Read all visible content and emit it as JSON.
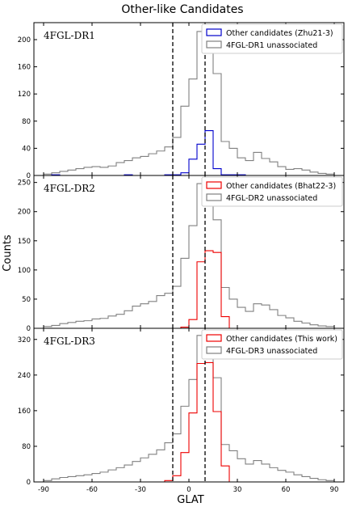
{
  "figure_title": "Other-like Candidates",
  "chart_data": {
    "type": "step-histogram",
    "title": "Other-like Candidates",
    "xlabel": "GLAT",
    "ylabel": "Counts",
    "x_ticks": [
      -90,
      -60,
      -30,
      0,
      30,
      60,
      90
    ],
    "xlim": [
      -96,
      96
    ],
    "bin_edges": [
      -90,
      -85,
      -80,
      -75,
      -70,
      -65,
      -60,
      -55,
      -50,
      -45,
      -40,
      -35,
      -30,
      -25,
      -20,
      -15,
      -10,
      -5,
      0,
      5,
      10,
      15,
      20,
      25,
      30,
      35,
      40,
      45,
      50,
      55,
      60,
      65,
      70,
      75,
      80,
      85,
      90
    ],
    "vertical_lines": [
      -10,
      10
    ],
    "grid": false,
    "legend_position": "top-right",
    "colors": {
      "unassociated": "#808080",
      "dr1_candidates": "#0000cc",
      "dr2_candidates": "#ee0000",
      "dr3_candidates": "#ee0000",
      "vlines": "#000000"
    },
    "panels": [
      {
        "label": "4FGL-DR1",
        "ylim": [
          0,
          225
        ],
        "y_ticks": [
          0,
          40,
          80,
          120,
          160,
          200
        ],
        "series": [
          {
            "name": "Other candidates (Zhu21-3)",
            "color": "#0000cc",
            "values": [
              0,
              1,
              0,
              0,
              0,
              0,
              0,
              0,
              0,
              0,
              1,
              0,
              0,
              0,
              0,
              1,
              1,
              4,
              24,
              46,
              66,
              10,
              1,
              1,
              1,
              0,
              0,
              0,
              0,
              0,
              0,
              0,
              0,
              0,
              0,
              0
            ]
          },
          {
            "name": "4FGL-DR1 unassociated",
            "color": "#808080",
            "values": [
              2,
              4,
              6,
              8,
              10,
              12,
              13,
              12,
              14,
              19,
              22,
              26,
              28,
              32,
              36,
              42,
              56,
              102,
              142,
              212,
              200,
              150,
              50,
              40,
              26,
              22,
              34,
              25,
              20,
              13,
              9,
              10,
              8,
              5,
              3,
              2
            ]
          }
        ]
      },
      {
        "label": "4FGL-DR2",
        "ylim": [
          0,
          262
        ],
        "y_ticks": [
          0,
          50,
          100,
          150,
          200,
          250
        ],
        "series": [
          {
            "name": "Other candidates (Bhat22-3)",
            "color": "#ee0000",
            "values": [
              0,
              0,
              0,
              0,
              0,
              0,
              0,
              0,
              0,
              0,
              0,
              0,
              0,
              0,
              0,
              0,
              0,
              2,
              15,
              114,
              133,
              130,
              20,
              0,
              0,
              0,
              0,
              0,
              0,
              0,
              0,
              0,
              0,
              0,
              0,
              0
            ]
          },
          {
            "name": "4FGL-DR2 unassociated",
            "color": "#808080",
            "values": [
              3,
              5,
              8,
              10,
              12,
              13,
              16,
              17,
              21,
              24,
              30,
              38,
              42,
              46,
              56,
              60,
              72,
              120,
              176,
              248,
              240,
              186,
              70,
              50,
              36,
              29,
              42,
              40,
              32,
              22,
              18,
              12,
              9,
              6,
              4,
              3
            ]
          }
        ]
      },
      {
        "label": "4FGL-DR3",
        "ylim": [
          0,
          345
        ],
        "y_ticks": [
          0,
          80,
          160,
          240,
          320
        ],
        "series": [
          {
            "name": "Other candidates (This work)",
            "color": "#ee0000",
            "values": [
              0,
              0,
              0,
              0,
              0,
              0,
              0,
              0,
              0,
              0,
              0,
              0,
              0,
              0,
              0,
              3,
              14,
              66,
              155,
              266,
              268,
              158,
              36,
              0,
              0,
              0,
              0,
              0,
              0,
              0,
              0,
              0,
              0,
              0,
              0,
              0
            ]
          },
          {
            "name": "4FGL-DR3 unassociated",
            "color": "#808080",
            "values": [
              3,
              7,
              10,
              12,
              14,
              16,
              19,
              22,
              27,
              32,
              38,
              46,
              54,
              62,
              72,
              88,
              108,
              170,
              230,
              329,
              318,
              234,
              84,
              70,
              52,
              40,
              48,
              40,
              32,
              26,
              22,
              16,
              12,
              8,
              5,
              3
            ]
          }
        ]
      }
    ]
  }
}
